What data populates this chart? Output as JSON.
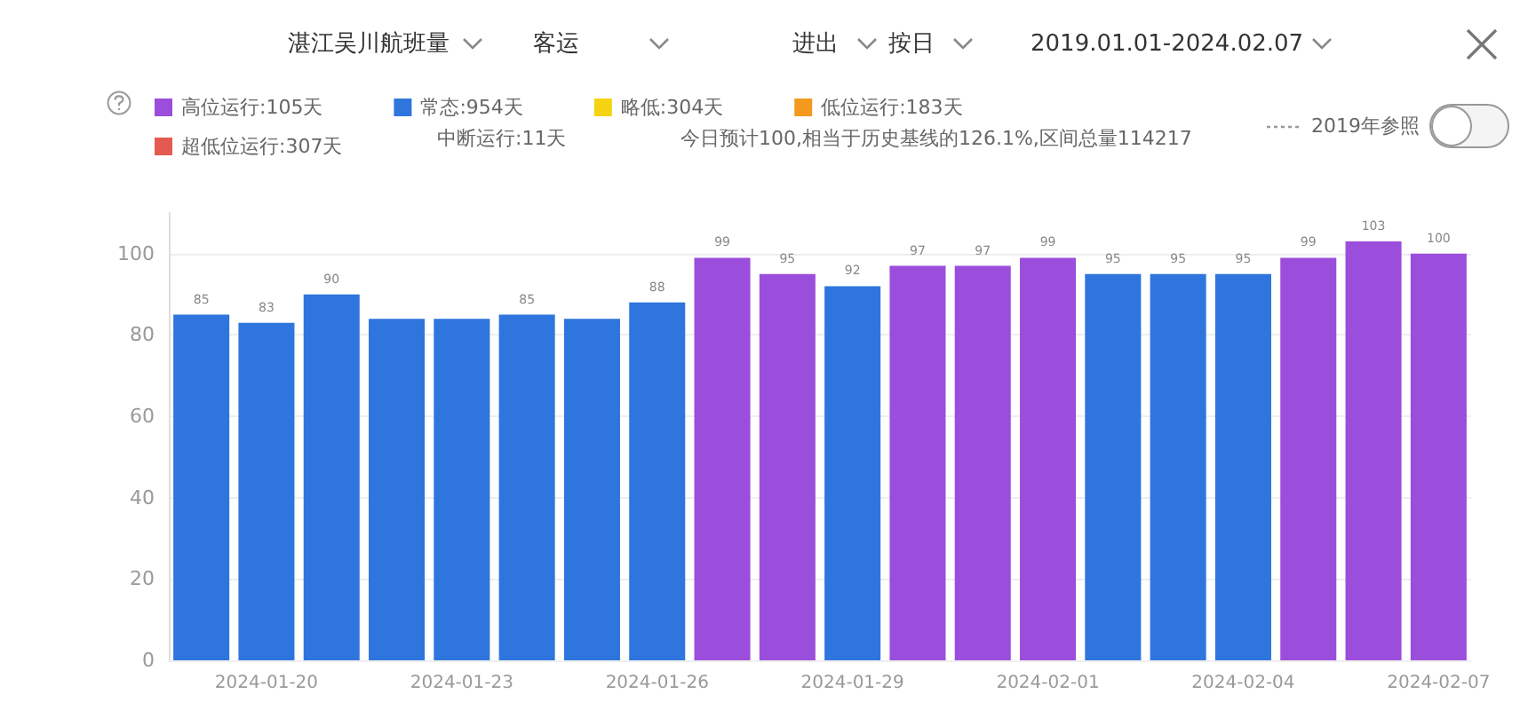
{
  "chart_data": {
    "type": "bar",
    "stacked": true,
    "categories": [
      null,
      "2024-01-20",
      null,
      null,
      "2024-01-23",
      null,
      null,
      "2024-01-26",
      null,
      null,
      "2024-01-29",
      null,
      null,
      "2024-02-01",
      null,
      null,
      "2024-02-04",
      null,
      null,
      "2024-02-07"
    ],
    "series": [
      {
        "name": "高位运行:105天",
        "color": "#9b4ddb",
        "values": [
          null,
          null,
          null,
          null,
          null,
          null,
          null,
          null,
          99,
          95,
          null,
          97,
          97,
          99,
          null,
          null,
          null,
          99,
          103,
          100
        ]
      },
      {
        "name": "常态:954天",
        "color": "#2e75de",
        "values": [
          85,
          83,
          90,
          84,
          84,
          85,
          84,
          88,
          null,
          null,
          92,
          null,
          null,
          null,
          95,
          95,
          95,
          null,
          null,
          null
        ]
      },
      {
        "name": "略低:304天",
        "color": "#f5d312",
        "values": [
          null,
          null,
          null,
          null,
          null,
          null,
          null,
          null,
          null,
          null,
          null,
          null,
          null,
          null,
          null,
          null,
          null,
          null,
          null,
          null
        ]
      },
      {
        "name": "低位运行:183天",
        "color": "#f39a1e",
        "values": [
          null,
          null,
          null,
          null,
          null,
          null,
          null,
          null,
          null,
          null,
          null,
          null,
          null,
          null,
          null,
          null,
          null,
          null,
          null,
          null
        ]
      },
      {
        "name": "超低位运行:307天",
        "color": "#e55a50",
        "values": [
          null,
          null,
          null,
          null,
          null,
          null,
          null,
          null,
          null,
          null,
          null,
          null,
          null,
          null,
          null,
          null,
          null,
          null,
          null,
          null
        ]
      }
    ],
    "value_labels": [
      "85",
      "83",
      "90",
      null,
      null,
      "85",
      null,
      "88",
      "99",
      "95",
      "92",
      "97",
      "97",
      "99",
      "95",
      "95",
      "95",
      "99",
      "103",
      "100"
    ],
    "ylim": [
      0,
      110
    ],
    "yticks": [
      0,
      20,
      40,
      60,
      80,
      100
    ],
    "grid": "y",
    "legend": "top left",
    "annotations": [
      "湛江吴川航班量",
      "客运",
      "进出",
      "按日",
      "2019.01.01-2024.02.07",
      "中断运行:11天",
      "今日预计100,相当于历史基线的126.1%,区间总量114217",
      "2019年参照"
    ]
  }
}
